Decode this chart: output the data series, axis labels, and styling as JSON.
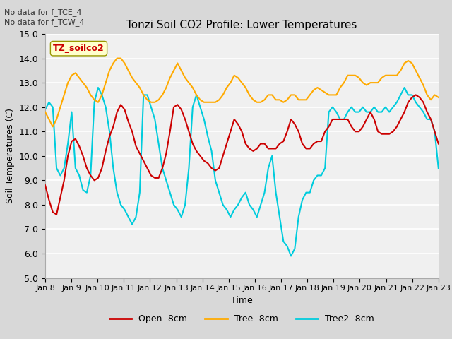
{
  "title": "Tonzi Soil CO2 Profile: Lower Temperatures",
  "ylabel": "Soil Temperatures (C)",
  "xlabel": "Time",
  "annotation1": "No data for f_TCE_4",
  "annotation2": "No data for f_TCW_4",
  "legend_label": "TZ_soilco2",
  "ylim": [
    5.0,
    15.0
  ],
  "yticks": [
    5.0,
    6.0,
    7.0,
    8.0,
    9.0,
    10.0,
    11.0,
    12.0,
    13.0,
    14.0,
    15.0
  ],
  "xtick_labels": [
    "Jan 8",
    "Jan 9",
    "Jan 10",
    "Jan 11",
    "Jan 12",
    "Jan 13",
    "Jan 14",
    "Jan 15",
    "Jan 16",
    "Jan 17",
    "Jan 18",
    "Jan 19",
    "Jan 20",
    "Jan 21",
    "Jan 22",
    "Jan 23"
  ],
  "colors": {
    "open": "#cc0000",
    "tree": "#ffaa00",
    "tree2": "#00ccdd"
  },
  "series_labels": [
    "Open -8cm",
    "Tree -8cm",
    "Tree2 -8cm"
  ],
  "bg_outer": "#d8d8d8",
  "bg_inner": "#f0f0f0",
  "grid_color": "white",
  "open_data": [
    8.8,
    8.2,
    7.7,
    7.6,
    8.3,
    9.0,
    10.0,
    10.6,
    10.7,
    10.4,
    10.0,
    9.5,
    9.2,
    9.0,
    9.1,
    9.5,
    10.2,
    10.8,
    11.2,
    11.8,
    12.1,
    11.9,
    11.4,
    11.0,
    10.4,
    10.1,
    9.8,
    9.5,
    9.2,
    9.1,
    9.1,
    9.5,
    10.1,
    11.0,
    12.0,
    12.1,
    11.9,
    11.5,
    11.0,
    10.5,
    10.2,
    10.0,
    9.8,
    9.7,
    9.5,
    9.4,
    9.5,
    10.0,
    10.5,
    11.0,
    11.5,
    11.3,
    11.0,
    10.5,
    10.3,
    10.2,
    10.3,
    10.5,
    10.5,
    10.3,
    10.3,
    10.3,
    10.5,
    10.6,
    11.0,
    11.5,
    11.3,
    11.0,
    10.5,
    10.3,
    10.3,
    10.5,
    10.6,
    10.6,
    11.0,
    11.2,
    11.5,
    11.5,
    11.5,
    11.5,
    11.5,
    11.2,
    11.0,
    11.0,
    11.2,
    11.5,
    11.8,
    11.5,
    11.0,
    10.9,
    10.9,
    10.9,
    11.0,
    11.2,
    11.5,
    11.8,
    12.2,
    12.4,
    12.5,
    12.4,
    12.2,
    11.8,
    11.5,
    11.0,
    10.5
  ],
  "tree_data": [
    11.8,
    11.5,
    11.2,
    11.5,
    12.0,
    12.5,
    13.0,
    13.3,
    13.4,
    13.2,
    13.0,
    12.8,
    12.5,
    12.3,
    12.2,
    12.5,
    13.0,
    13.5,
    13.8,
    14.0,
    14.0,
    13.8,
    13.5,
    13.2,
    13.0,
    12.8,
    12.5,
    12.3,
    12.2,
    12.2,
    12.3,
    12.5,
    12.8,
    13.2,
    13.5,
    13.8,
    13.5,
    13.2,
    13.0,
    12.8,
    12.5,
    12.3,
    12.2,
    12.2,
    12.2,
    12.2,
    12.3,
    12.5,
    12.8,
    13.0,
    13.3,
    13.2,
    13.0,
    12.8,
    12.5,
    12.3,
    12.2,
    12.2,
    12.3,
    12.5,
    12.5,
    12.3,
    12.3,
    12.2,
    12.3,
    12.5,
    12.5,
    12.3,
    12.3,
    12.3,
    12.5,
    12.7,
    12.8,
    12.7,
    12.6,
    12.5,
    12.5,
    12.5,
    12.8,
    13.0,
    13.3,
    13.3,
    13.3,
    13.2,
    13.0,
    12.9,
    13.0,
    13.0,
    13.0,
    13.2,
    13.3,
    13.3,
    13.3,
    13.3,
    13.5,
    13.8,
    13.9,
    13.8,
    13.5,
    13.2,
    12.9,
    12.5,
    12.3,
    12.5,
    12.4
  ],
  "tree2_data": [
    11.9,
    12.2,
    12.0,
    9.5,
    9.2,
    9.5,
    10.5,
    11.8,
    9.5,
    9.2,
    8.6,
    8.5,
    9.2,
    12.2,
    12.8,
    12.5,
    12.0,
    11.0,
    9.5,
    8.5,
    8.0,
    7.8,
    7.5,
    7.2,
    7.5,
    8.5,
    12.5,
    12.5,
    12.0,
    11.5,
    10.5,
    9.5,
    9.0,
    8.5,
    8.0,
    7.8,
    7.5,
    8.0,
    9.5,
    12.0,
    12.5,
    12.0,
    11.5,
    10.8,
    10.2,
    9.0,
    8.5,
    8.0,
    7.8,
    7.5,
    7.8,
    8.0,
    8.3,
    8.5,
    8.0,
    7.8,
    7.5,
    8.0,
    8.5,
    9.5,
    10.0,
    8.5,
    7.5,
    6.5,
    6.3,
    5.9,
    6.2,
    7.5,
    8.2,
    8.5,
    8.5,
    9.0,
    9.2,
    9.2,
    9.5,
    11.8,
    12.0,
    11.8,
    11.5,
    11.5,
    11.8,
    12.0,
    11.8,
    11.8,
    12.0,
    11.8,
    11.8,
    12.0,
    11.8,
    11.8,
    12.0,
    11.8,
    12.0,
    12.2,
    12.5,
    12.8,
    12.5,
    12.5,
    12.2,
    12.0,
    11.8,
    11.5,
    11.5,
    11.0,
    9.5
  ]
}
